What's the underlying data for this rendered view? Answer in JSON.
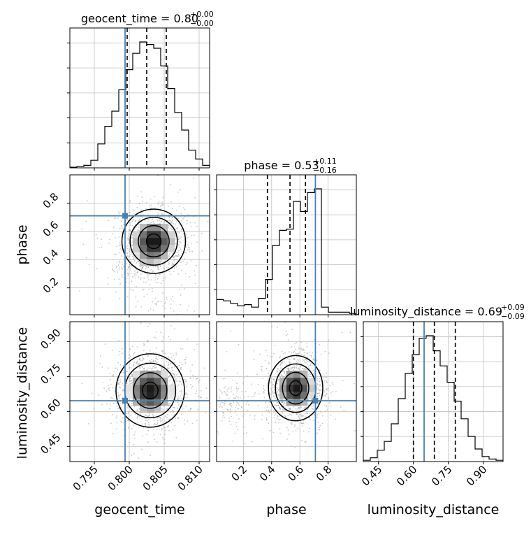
{
  "figure": {
    "truth_color": "#4682b4",
    "hist_color": "#000000",
    "grid_color": "#c0c0c0",
    "point_color": "#9a9a9a"
  },
  "chart_data": {
    "type": "corner",
    "parameters": [
      "geocent_time",
      "phase",
      "luminosity_distance"
    ],
    "truths": [
      0.7994,
      0.71,
      0.646
    ],
    "titles": [
      {
        "param": "geocent_time",
        "median": "0.80",
        "plus": "+0.00",
        "minus": "−0.00"
      },
      {
        "param": "phase",
        "median": "0.53",
        "plus": "+0.11",
        "minus": "−0.16"
      },
      {
        "param": "luminosity_distance",
        "median": "0.69",
        "plus": "+0.09",
        "minus": "−0.09"
      }
    ],
    "ranges": {
      "geocent_time": [
        0.7915,
        0.8115
      ],
      "phase": [
        0.01,
        1.0
      ],
      "luminosity_distance": [
        0.385,
        0.985
      ]
    },
    "ticks": {
      "geocent_time": {
        "values": [
          0.795,
          0.8,
          0.805,
          0.81
        ],
        "labels": [
          "0.795",
          "0.800",
          "0.805",
          "0.810"
        ]
      },
      "phase": {
        "values": [
          0.2,
          0.4,
          0.6,
          0.8
        ],
        "labels": [
          "0.2",
          "0.4",
          "0.6",
          "0.8"
        ]
      },
      "luminosity_distance": {
        "values": [
          0.45,
          0.6,
          0.75,
          0.9
        ],
        "labels": [
          "0.45",
          "0.60",
          "0.75",
          "0.90"
        ]
      }
    },
    "quantiles": {
      "geocent_time": [
        0.7997,
        0.8025,
        0.8053
      ],
      "phase": [
        0.37,
        0.53,
        0.64
      ],
      "luminosity_distance": [
        0.6,
        0.69,
        0.78
      ]
    },
    "histograms": {
      "geocent_time": [
        0.005,
        0.01,
        0.02,
        0.06,
        0.19,
        0.33,
        0.45,
        0.62,
        0.78,
        0.91,
        1.0,
        0.98,
        0.95,
        0.81,
        0.63,
        0.44,
        0.3,
        0.14,
        0.07,
        0.02
      ],
      "phase": [
        0.12,
        0.11,
        0.09,
        0.07,
        0.08,
        0.06,
        0.13,
        0.28,
        0.55,
        0.67,
        0.68,
        0.9,
        0.82,
        0.97,
        1.0,
        0.06,
        0.02,
        0.02,
        0.02,
        0.01
      ],
      "luminosity_distance": [
        0.01,
        0.03,
        0.09,
        0.16,
        0.3,
        0.5,
        0.7,
        0.85,
        0.98,
        1.0,
        0.88,
        0.76,
        0.63,
        0.48,
        0.34,
        0.2,
        0.1,
        0.04,
        0.02,
        0.01
      ]
    },
    "density_2d": [
      {
        "x": "geocent_time",
        "y": "phase",
        "blobs": [
          {
            "cx": 0.8035,
            "cy": 0.53,
            "sx": 0.0026,
            "sy": 0.13,
            "w": 1.0
          },
          {
            "cx": 0.801,
            "cy": 0.32,
            "sx": 0.0022,
            "sy": 0.07,
            "w": 0.28
          },
          {
            "cx": 0.8045,
            "cy": 0.09,
            "sx": 0.002,
            "sy": 0.05,
            "w": 0.15
          }
        ]
      },
      {
        "x": "geocent_time",
        "y": "luminosity_distance",
        "blobs": [
          {
            "cx": 0.803,
            "cy": 0.69,
            "sx": 0.0028,
            "sy": 0.09,
            "w": 1.0
          }
        ]
      },
      {
        "x": "phase",
        "y": "luminosity_distance",
        "blobs": [
          {
            "cx": 0.57,
            "cy": 0.7,
            "sx": 0.11,
            "sy": 0.08,
            "w": 1.0
          },
          {
            "cx": 0.1,
            "cy": 0.63,
            "sx": 0.08,
            "sy": 0.06,
            "w": 0.22
          }
        ]
      }
    ],
    "grid": true
  }
}
